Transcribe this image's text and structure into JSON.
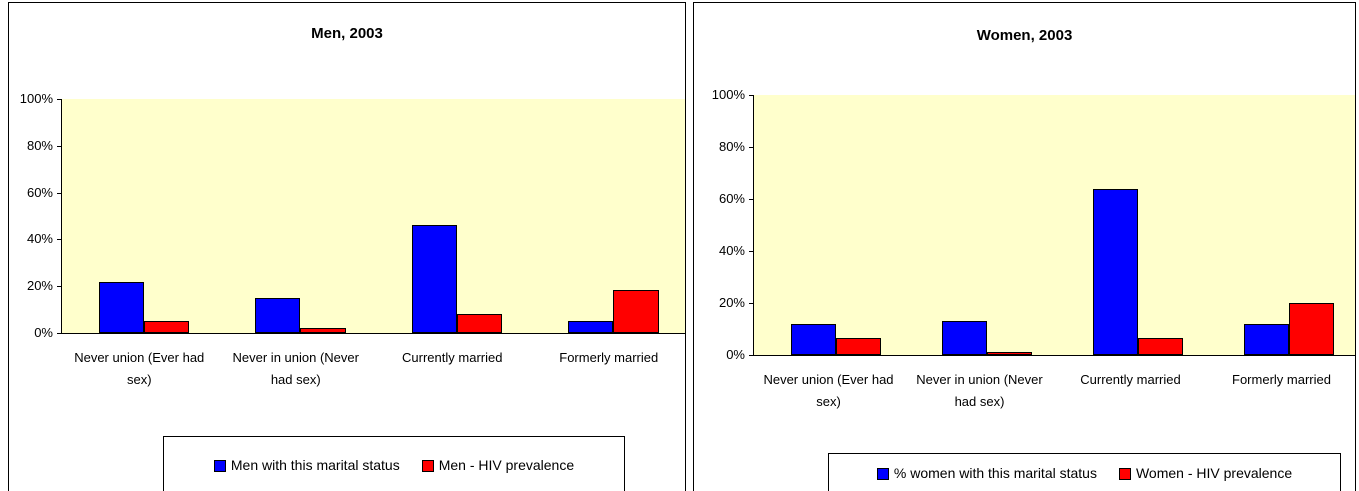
{
  "chart_data": [
    {
      "type": "bar",
      "title": "Men, 2003",
      "categories": [
        "Never union (Ever had sex)",
        "Never in union (Never had sex)",
        "Currently married",
        "Formerly married"
      ],
      "series": [
        {
          "name": "Men with this marital status",
          "color": "#0000ff",
          "values": [
            22,
            15,
            46,
            5
          ]
        },
        {
          "name": "Men - HIV prevalence",
          "color": "#ff0000",
          "values": [
            5,
            2,
            8,
            18.5
          ]
        }
      ],
      "ylim": [
        0,
        100
      ],
      "yticks": [
        {
          "value": 0,
          "label": "0%"
        },
        {
          "value": 20,
          "label": "20%"
        },
        {
          "value": 40,
          "label": "40%"
        },
        {
          "value": 60,
          "label": "60%"
        },
        {
          "value": 80,
          "label": "80%"
        },
        {
          "value": 100,
          "label": "100%"
        }
      ],
      "plot_color": "#ffffcc",
      "legend": "bottom"
    },
    {
      "type": "bar",
      "title": "Women, 2003",
      "categories": [
        "Never union (Ever had sex)",
        "Never in union (Never had sex)",
        "Currently married",
        "Formerly married"
      ],
      "series": [
        {
          "name": "% women with this marital status",
          "color": "#0000ff",
          "values": [
            12,
            13,
            64,
            12
          ]
        },
        {
          "name": "Women - HIV prevalence",
          "color": "#ff0000",
          "values": [
            6.5,
            1,
            6.5,
            20
          ]
        }
      ],
      "ylim": [
        0,
        100
      ],
      "yticks": [
        {
          "value": 0,
          "label": "0%"
        },
        {
          "value": 20,
          "label": "20%"
        },
        {
          "value": 40,
          "label": "40%"
        },
        {
          "value": 60,
          "label": "60%"
        },
        {
          "value": 80,
          "label": "80%"
        },
        {
          "value": 100,
          "label": "100%"
        }
      ],
      "plot_color": "#ffffcc",
      "legend": "bottom"
    }
  ]
}
